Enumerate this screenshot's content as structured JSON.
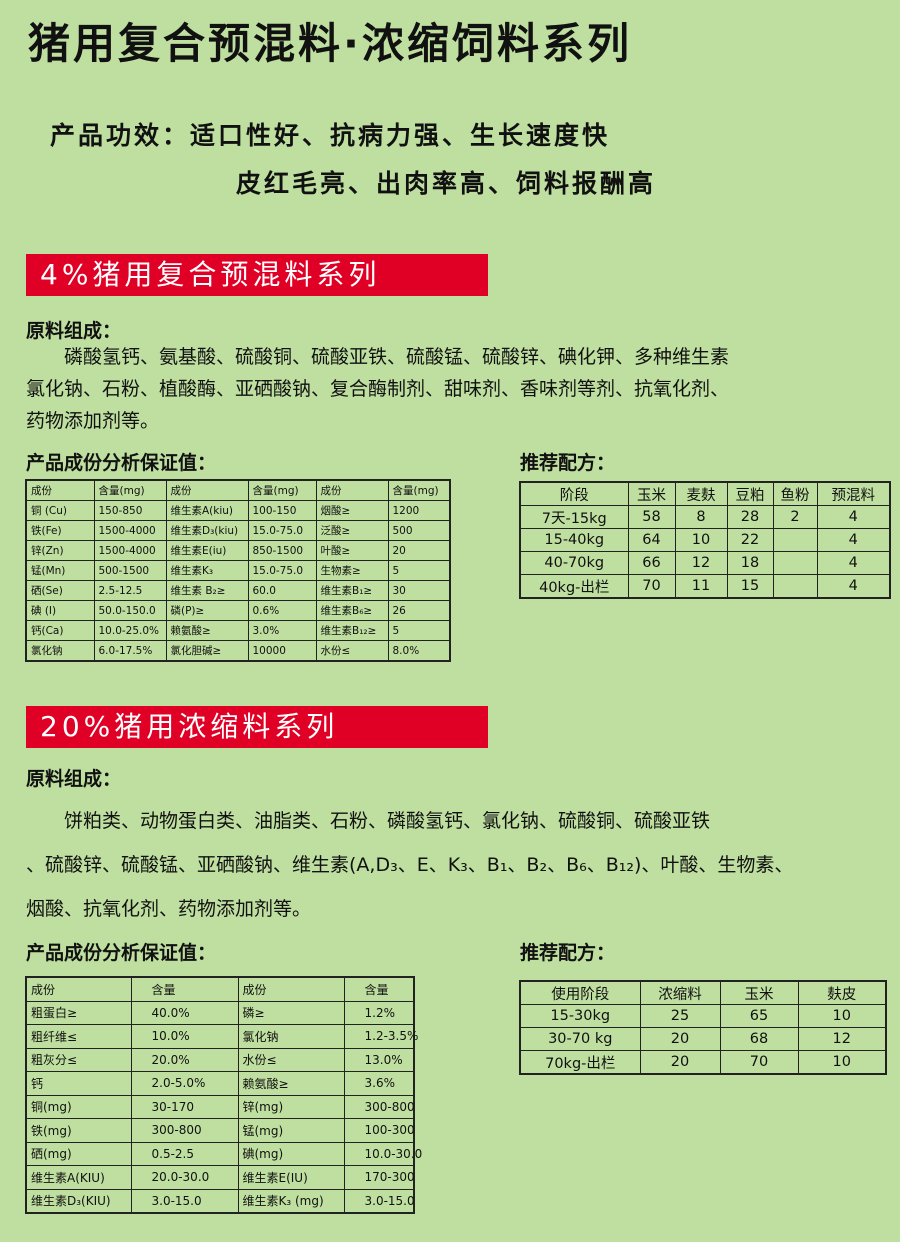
{
  "title": "猪用复合预混料·浓缩饲料系列",
  "efficacy": {
    "line1": "产品功效：适口性好、抗病力强、生长速度快",
    "line2": "皮红毛亮、出肉率高、饲料报酬高"
  },
  "colors": {
    "background": "#bfdfa0",
    "band": "#e00025"
  },
  "section1": {
    "band": "4%猪用复合预混料系列",
    "ingredients_heading": "原料组成：",
    "ingredients": [
      "　　磷酸氢钙、氨基酸、硫酸铜、硫酸亚铁、硫酸锰、硫酸锌、碘化钾、多种维生素",
      "氯化钠、石粉、植酸酶、亚硒酸钠、复合酶制剂、甜味剂、香味剂等剂、抗氧化剂、",
      "药物添加剂等。"
    ],
    "analysis_heading": "产品成份分析保证值：",
    "analysis": [
      [
        "成份",
        "含量(mg)",
        "成份",
        "含量(mg)",
        "成份",
        "含量(mg)"
      ],
      [
        "铜 (Cu)",
        "150-850",
        "维生素A(kiu)",
        "100-150",
        "烟酸≥",
        "1200"
      ],
      [
        "铁(Fe)",
        "1500-4000",
        "维生素D₃(kiu)",
        "15.0-75.0",
        "泛酸≥",
        "500"
      ],
      [
        "锌(Zn)",
        "1500-4000",
        "维生素E(iu)",
        "850-1500",
        "叶酸≥",
        "20"
      ],
      [
        "锰(Mn)",
        "500-1500",
        "维生素K₃",
        "15.0-75.0",
        "生物素≥",
        "5"
      ],
      [
        "硒(Se)",
        "2.5-12.5",
        "维生素 B₂≥",
        "60.0",
        "维生素B₁≥",
        "30"
      ],
      [
        "碘 (I)",
        "50.0-150.0",
        "磷(P)≥",
        "0.6%",
        "维生素B₆≥",
        "26"
      ],
      [
        "钙(Ca)",
        "10.0-25.0%",
        "赖氨酸≥",
        "3.0%",
        "维生素B₁₂≥",
        "5"
      ],
      [
        "氯化钠",
        "6.0-17.5%",
        "氯化胆碱≥",
        "10000",
        "水份≤",
        "8.0%"
      ]
    ],
    "formula_heading": "推荐配方：",
    "formula": [
      [
        "阶段",
        "玉米",
        "麦麸",
        "豆粕",
        "鱼粉",
        "预混料"
      ],
      [
        "7天-15kg",
        "58",
        "8",
        "28",
        "2",
        "4"
      ],
      [
        "15-40kg",
        "64",
        "10",
        "22",
        "",
        "4"
      ],
      [
        "40-70kg",
        "66",
        "12",
        "18",
        "",
        "4"
      ],
      [
        "40kg-出栏",
        "70",
        "11",
        "15",
        "",
        "4"
      ]
    ]
  },
  "section2": {
    "band": "20%猪用浓缩料系列",
    "ingredients_heading": "原料组成：",
    "ingredients": [
      "　　饼粕类、动物蛋白类、油脂类、石粉、磷酸氢钙、氯化钠、硫酸铜、硫酸亚铁",
      "、硫酸锌、硫酸锰、亚硒酸钠、维生素(A,D₃、E、K₃、B₁、B₂、B₆、B₁₂)、叶酸、生物素、",
      "烟酸、抗氧化剂、药物添加剂等。"
    ],
    "analysis_heading": "产品成份分析保证值：",
    "analysis": [
      [
        "成份",
        "含量",
        "成份",
        "含量"
      ],
      [
        "粗蛋白≥",
        "40.0%",
        "磷≥",
        "1.2%"
      ],
      [
        "粗纤维≤",
        "10.0%",
        "氯化钠",
        "1.2-3.5%"
      ],
      [
        "粗灰分≤",
        "20.0%",
        "水份≤",
        "13.0%"
      ],
      [
        "钙",
        "2.0-5.0%",
        "赖氨酸≥",
        "3.6%"
      ],
      [
        "铜(mg)",
        "30-170",
        "锌(mg)",
        "300-800"
      ],
      [
        "铁(mg)",
        "300-800",
        "锰(mg)",
        "100-300"
      ],
      [
        "硒(mg)",
        "0.5-2.5",
        "碘(mg)",
        "10.0-30.0"
      ],
      [
        "维生素A(KIU)",
        "20.0-30.0",
        "维生素E(IU)",
        "170-300"
      ],
      [
        "维生素D₃(KIU)",
        "3.0-15.0",
        "维生素K₃ (mg)",
        "3.0-15.0"
      ]
    ],
    "formula_heading": "推荐配方：",
    "formula": [
      [
        "使用阶段",
        "浓缩料",
        "玉米",
        "麸皮"
      ],
      [
        "15-30kg",
        "25",
        "65",
        "10"
      ],
      [
        "30-70 kg",
        "20",
        "68",
        "12"
      ],
      [
        "70kg-出栏",
        "20",
        "70",
        "10"
      ]
    ]
  }
}
